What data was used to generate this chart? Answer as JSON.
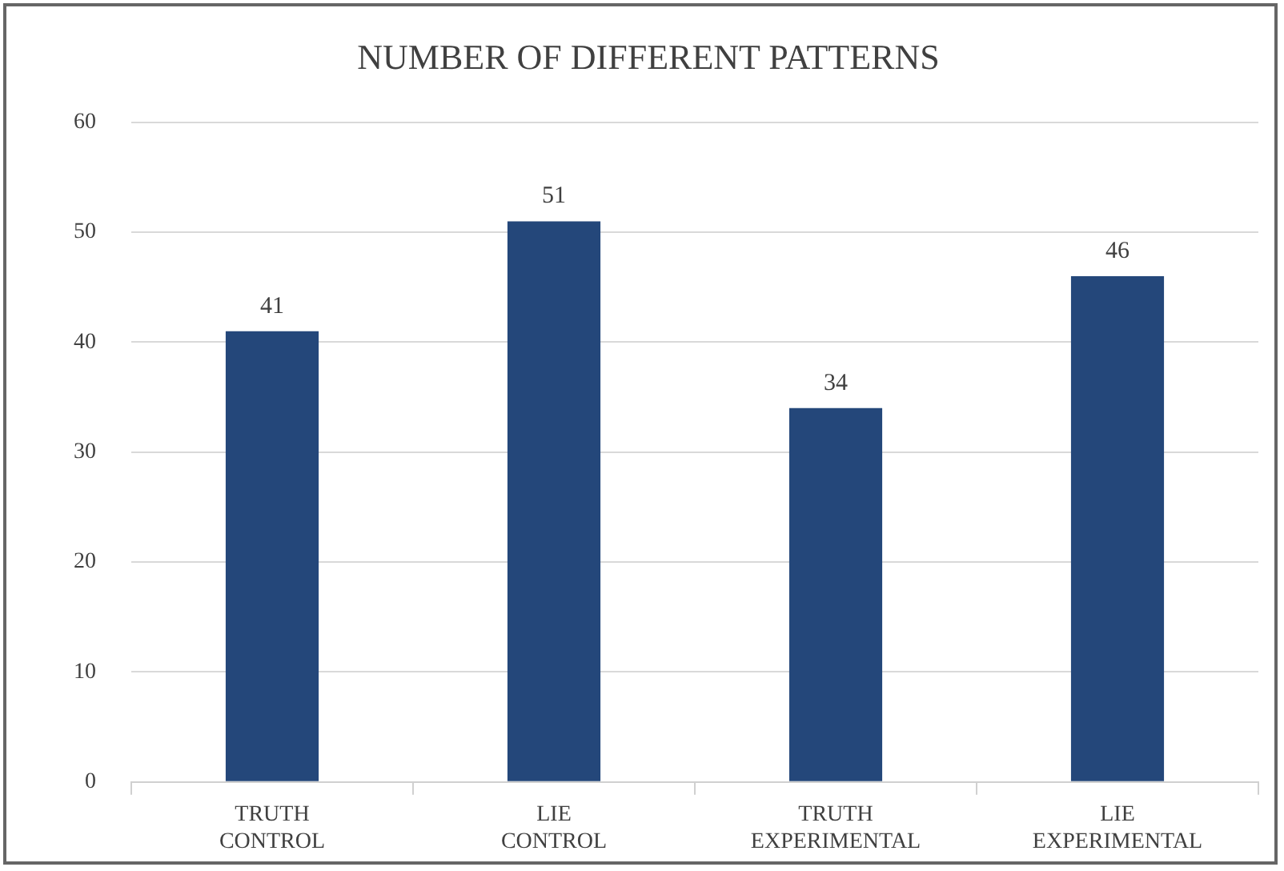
{
  "chart_data": {
    "type": "bar",
    "title": "NUMBER OF DIFFERENT PATTERNS",
    "categories": [
      "TRUTH\nCONTROL",
      "LIE\nCONTROL",
      "TRUTH\nEXPERIMENTAL",
      "LIE\nEXPERIMENTAL"
    ],
    "values": [
      41,
      51,
      34,
      46
    ],
    "color": "#24477a",
    "ylim": [
      0,
      60
    ],
    "yticks": [
      0,
      10,
      20,
      30,
      40,
      50,
      60
    ],
    "grid": "y",
    "data_labels": true
  }
}
